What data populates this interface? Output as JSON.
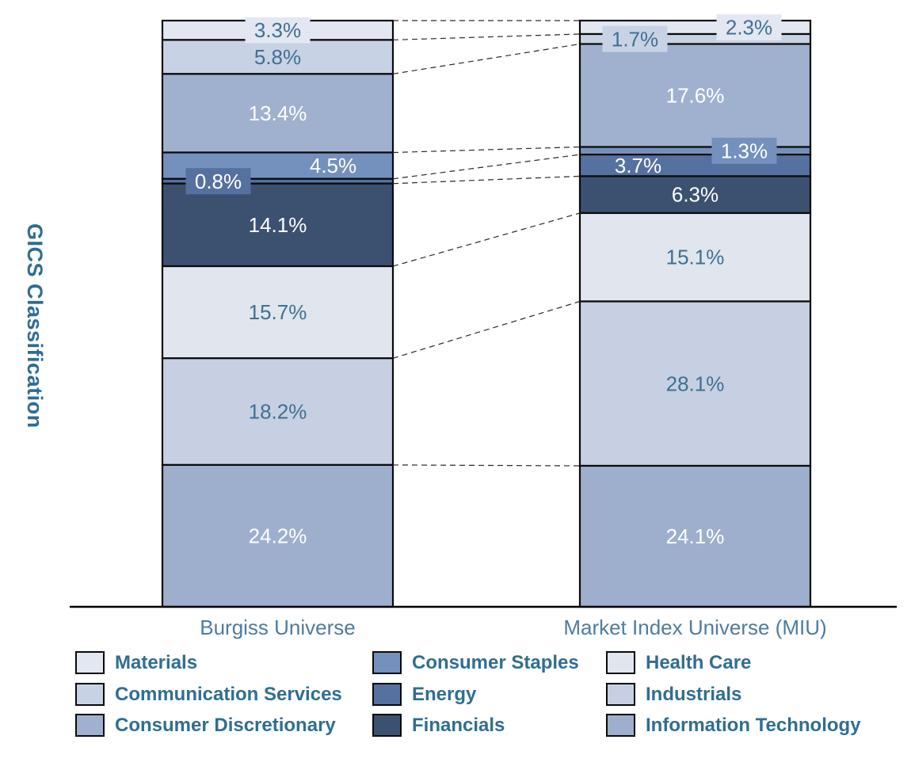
{
  "chart_data": {
    "type": "bar",
    "variant": "100-percent-stacked-columns-with-connector-lines",
    "title": "",
    "ylabel": "GICS Classification",
    "xlabel": "",
    "axis_range": [
      0,
      100
    ],
    "grid": false,
    "legend_position": "bottom",
    "categories": [
      "Burgiss Universe",
      "Market Index Universe (MIU)"
    ],
    "stack_order_top_to_bottom": [
      "Materials",
      "Communication Services",
      "Consumer Discretionary",
      "Consumer Staples",
      "Energy",
      "Financials",
      "Health Care",
      "Industrials",
      "Information Technology"
    ],
    "series": [
      {
        "name": "Materials",
        "color": "#E2E7F1",
        "values": [
          3.3,
          2.3
        ]
      },
      {
        "name": "Communication Services",
        "color": "#C8D2E5",
        "values": [
          5.8,
          1.7
        ]
      },
      {
        "name": "Consumer Discretionary",
        "color": "#A0B1CF",
        "values": [
          13.4,
          17.6
        ]
      },
      {
        "name": "Consumer Staples",
        "color": "#7490BC",
        "values": [
          4.5,
          1.3
        ]
      },
      {
        "name": "Energy",
        "color": "#54719F",
        "values": [
          0.8,
          3.7
        ]
      },
      {
        "name": "Financials",
        "color": "#3C5170",
        "values": [
          14.1,
          6.3
        ]
      },
      {
        "name": "Health Care",
        "color": "#E0E5EE",
        "values": [
          15.7,
          15.1
        ]
      },
      {
        "name": "Industrials",
        "color": "#C6D0E2",
        "values": [
          18.2,
          28.1
        ]
      },
      {
        "name": "Information Technology",
        "color": "#9EAFCD",
        "values": [
          24.2,
          24.1
        ]
      }
    ],
    "value_labels": [
      [
        "3.3%",
        "5.8%",
        "13.4%",
        "4.5%",
        "0.8%",
        "14.1%",
        "15.7%",
        "18.2%",
        "24.2%"
      ],
      [
        "2.3%",
        "1.7%",
        "17.6%",
        "1.3%",
        "3.7%",
        "6.3%",
        "15.1%",
        "28.1%",
        "24.1%"
      ]
    ],
    "label_layout": [
      [
        [
          0,
          "dark",
          1
        ],
        [
          0,
          "dark",
          0
        ],
        [
          0,
          "light",
          0
        ],
        [
          70,
          "light",
          0
        ],
        [
          -75,
          "light",
          1
        ],
        [
          0,
          "light",
          0
        ],
        [
          0,
          "dark",
          0
        ],
        [
          0,
          "dark",
          0
        ],
        [
          0,
          "light",
          0
        ]
      ],
      [
        [
          68,
          "dark",
          1
        ],
        [
          -76,
          "dark",
          1
        ],
        [
          0,
          "light",
          0
        ],
        [
          62,
          "light",
          1
        ],
        [
          -72,
          "light",
          0
        ],
        [
          0,
          "light",
          0
        ],
        [
          0,
          "dark",
          0
        ],
        [
          0,
          "dark",
          0
        ],
        [
          0,
          "light",
          0
        ]
      ]
    ],
    "connectors": true
  },
  "style": {
    "background": "#FFFFFF",
    "segment_border": "#0A0A0A",
    "axis_line": "#000000",
    "connector_line": "#2A2A2A",
    "label_dark_text": "#3F7092",
    "label_light_text": "#FFFFFF",
    "category_text": "#4E7CA1",
    "ytitle_text": "#2E6D94",
    "legend_text": "#2F6E92"
  }
}
